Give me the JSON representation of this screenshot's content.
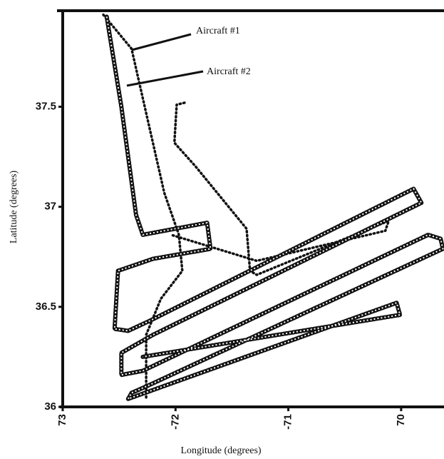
{
  "chart_data": {
    "type": "line",
    "xlabel": "Longitude (degrees)",
    "ylabel": "Latitude (degrees)",
    "xlim": [
      -73,
      -69.62
    ],
    "ylim": [
      36,
      37.98
    ],
    "xticks": [
      {
        "value": -73,
        "label": "73"
      },
      -72,
      -71,
      {
        "value": -70,
        "label": "70"
      }
    ],
    "yticks": [
      36,
      36.5,
      37,
      37.5
    ],
    "annotations": [
      {
        "text": "Aircraft #1"
      },
      {
        "text": "Aircraft #2"
      }
    ],
    "series": [
      {
        "name": "Aircraft #1",
        "color": "#111111",
        "style": "dots",
        "x": [
          -72.64,
          -72.39,
          -72.1,
          -71.97,
          -71.94,
          -72.13,
          -72.26,
          -72.26,
          null,
          -71.92,
          -71.99,
          -72.01,
          -71.82,
          -71.37,
          -71.34,
          -71.28,
          -70.11,
          -70.14,
          -71.28,
          -72.04
        ],
        "values": [
          37.96,
          37.79,
          37.07,
          36.86,
          36.68,
          36.54,
          36.36,
          36.04,
          null,
          37.52,
          37.51,
          37.32,
          37.2,
          36.89,
          36.68,
          36.66,
          36.93,
          36.88,
          36.73,
          36.86
        ]
      },
      {
        "name": "Aircraft #2",
        "color": "#111111",
        "style": "circles",
        "x": [
          -72.61,
          -72.48,
          -72.35,
          -72.29,
          -71.72,
          -71.69,
          -72.2,
          -72.51,
          -72.54,
          -72.42,
          -72.23,
          -69.89,
          -69.82,
          -72.2,
          -72.48,
          -72.48,
          -72.29,
          -69.76,
          -69.65,
          -69.63,
          -72.23,
          -72.39,
          -72.42,
          -70.04,
          -70.01,
          -72.29
        ],
        "values": [
          37.95,
          37.5,
          36.96,
          36.86,
          36.92,
          36.79,
          36.74,
          36.68,
          36.39,
          36.38,
          36.43,
          37.09,
          37.02,
          36.36,
          36.27,
          36.16,
          36.18,
          36.86,
          36.84,
          36.79,
          36.11,
          36.07,
          36.04,
          36.52,
          36.46,
          36.25
        ]
      }
    ]
  }
}
